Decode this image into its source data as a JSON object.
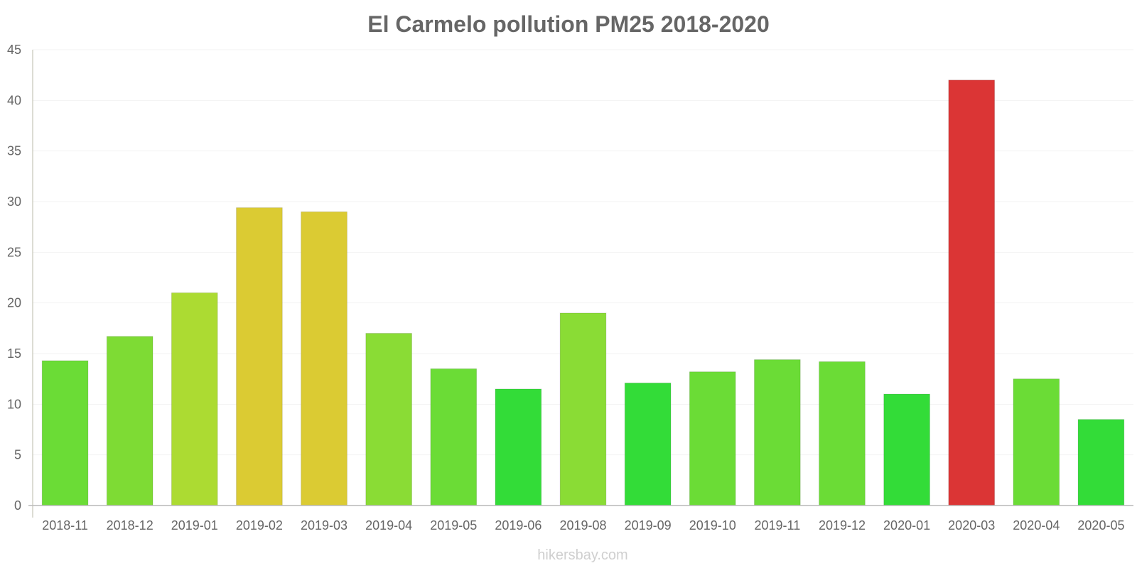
{
  "chart_data": {
    "type": "bar",
    "title": "El Carmelo pollution PM25 2018-2020",
    "xlabel": "",
    "ylabel": "",
    "ylim": [
      0,
      45
    ],
    "yticks": [
      0,
      5,
      10,
      15,
      20,
      25,
      30,
      35,
      40,
      45
    ],
    "categories": [
      "2018-11",
      "2018-12",
      "2019-01",
      "2019-02",
      "2019-03",
      "2019-04",
      "2019-05",
      "2019-06",
      "2019-08",
      "2019-09",
      "2019-10",
      "2019-11",
      "2019-12",
      "2020-01",
      "2020-03",
      "2020-04",
      "2020-05"
    ],
    "values": [
      14.3,
      16.7,
      21.0,
      29.4,
      29.0,
      17.0,
      13.5,
      11.5,
      19.0,
      12.1,
      13.2,
      14.4,
      14.2,
      11.0,
      42.0,
      12.5,
      8.5
    ],
    "bar_colors": [
      "#6bdc36",
      "#7edb34",
      "#acdb32",
      "#dbcb33",
      "#dbcb33",
      "#8adc35",
      "#6bdc36",
      "#33dc38",
      "#8adc35",
      "#33dc38",
      "#6bdc36",
      "#6bdc36",
      "#6bdc36",
      "#33dc38",
      "#db3535",
      "#6bdc36",
      "#33dc38"
    ],
    "grid": true,
    "legend": "none"
  },
  "watermark": "hikersbay.com"
}
